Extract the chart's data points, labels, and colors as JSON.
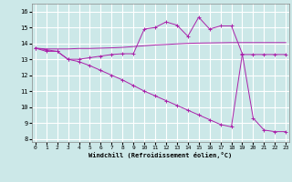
{
  "xlabel": "Windchill (Refroidissement éolien,°C)",
  "background_color": "#cce8e8",
  "line_color": "#aa22aa",
  "grid_color": "#ffffff",
  "x_ticks": [
    0,
    1,
    2,
    3,
    4,
    5,
    6,
    7,
    8,
    9,
    10,
    11,
    12,
    13,
    14,
    15,
    16,
    17,
    18,
    19,
    20,
    21,
    22,
    23
  ],
  "y_ticks": [
    8,
    9,
    10,
    11,
    12,
    13,
    14,
    15,
    16
  ],
  "ylim": [
    7.8,
    16.5
  ],
  "xlim": [
    -0.3,
    23.3
  ],
  "line1_x": [
    0,
    1,
    2,
    3,
    4,
    5,
    6,
    7,
    8,
    9,
    10,
    11,
    12,
    13,
    14,
    15,
    16,
    17,
    18,
    19,
    20,
    21,
    22,
    23
  ],
  "line1_y": [
    13.7,
    13.5,
    13.5,
    13.0,
    13.0,
    13.1,
    13.2,
    13.3,
    13.35,
    13.35,
    14.9,
    15.0,
    15.35,
    15.15,
    14.45,
    15.65,
    14.9,
    15.1,
    15.1,
    13.35,
    9.3,
    8.55,
    8.45,
    8.45
  ],
  "line2_x": [
    0,
    1,
    2,
    3,
    4,
    5,
    6,
    7,
    8,
    9,
    10,
    11,
    12,
    13,
    14,
    15,
    16,
    17,
    18,
    19,
    20,
    21,
    22,
    23
  ],
  "line2_y": [
    13.7,
    13.65,
    13.65,
    13.65,
    13.68,
    13.68,
    13.7,
    13.72,
    13.75,
    13.8,
    13.85,
    13.9,
    13.93,
    13.97,
    14.0,
    14.02,
    14.03,
    14.04,
    14.05,
    14.05,
    14.05,
    14.05,
    14.05,
    14.05
  ],
  "line3_x": [
    0,
    1,
    2,
    3,
    4,
    5,
    6,
    7,
    8,
    9,
    10,
    11,
    12,
    13,
    14,
    15,
    16,
    17,
    18,
    19,
    20,
    21,
    22,
    23
  ],
  "line3_y": [
    13.7,
    13.6,
    13.5,
    13.0,
    12.85,
    12.6,
    12.3,
    12.0,
    11.7,
    11.35,
    11.0,
    10.7,
    10.4,
    10.1,
    9.8,
    9.5,
    9.2,
    8.9,
    8.75,
    13.3,
    13.3,
    13.3,
    13.3,
    13.3
  ]
}
